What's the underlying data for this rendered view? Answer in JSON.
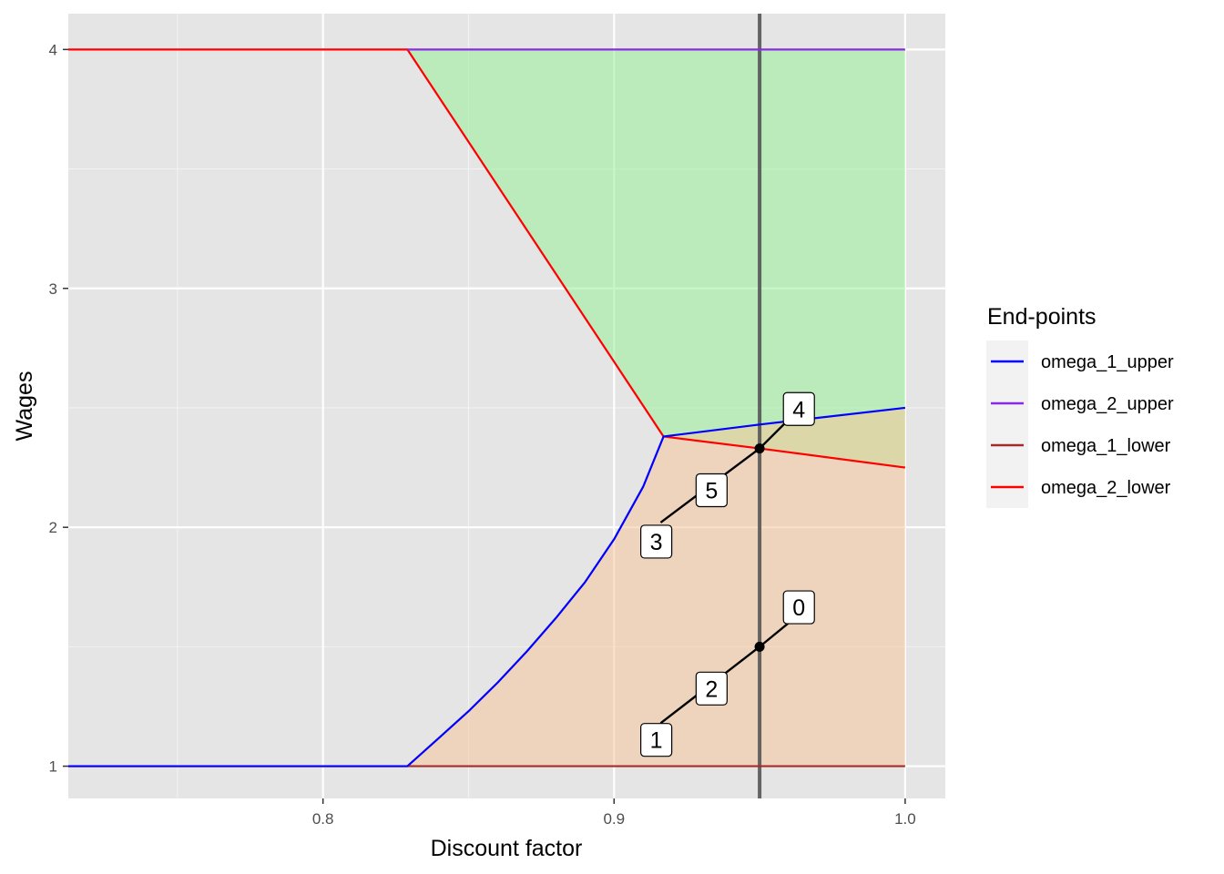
{
  "chart_data": {
    "type": "line",
    "title": "",
    "xlabel": "Discount factor",
    "ylabel": "Wages",
    "xlim": [
      0.7125,
      1.0138
    ],
    "ylim": [
      0.865,
      4.15
    ],
    "x_ticks": [
      0.8,
      0.9,
      1.0
    ],
    "x_tick_labels": [
      "0.8",
      "0.9",
      "1.0"
    ],
    "y_ticks": [
      1,
      2,
      3,
      4
    ],
    "y_tick_labels": [
      "1",
      "2",
      "3",
      "4"
    ],
    "grid": true,
    "legend": {
      "title": "End-points",
      "placement": "right",
      "entries": [
        {
          "name": "omega_1_upper",
          "color": "#0000ff"
        },
        {
          "name": "omega_2_upper",
          "color": "#8a2be2"
        },
        {
          "name": "omega_1_lower",
          "color": "#a52a2a"
        },
        {
          "name": "omega_2_lower",
          "color": "#ff0000"
        }
      ]
    },
    "series": [
      {
        "name": "omega_1_upper",
        "color": "#0000ff",
        "x": [
          0.7125,
          0.829,
          0.84,
          0.85,
          0.86,
          0.87,
          0.88,
          0.89,
          0.9,
          0.91,
          0.917,
          0.95,
          1.0
        ],
        "y": [
          1.0,
          1.0,
          1.12,
          1.23,
          1.35,
          1.48,
          1.62,
          1.77,
          1.95,
          2.17,
          2.38,
          2.43,
          2.5
        ]
      },
      {
        "name": "omega_2_upper",
        "color": "#8a2be2",
        "x": [
          0.829,
          1.0
        ],
        "y": [
          4.0,
          4.0
        ]
      },
      {
        "name": "omega_1_lower",
        "color": "#a52a2a",
        "x": [
          0.7125,
          1.0
        ],
        "y": [
          1.0,
          1.0
        ]
      },
      {
        "name": "omega_2_lower",
        "color": "#ff0000",
        "x": [
          0.7125,
          0.829,
          0.917,
          0.95,
          1.0
        ],
        "y": [
          4.0,
          4.0,
          2.38,
          2.33,
          2.25
        ]
      }
    ],
    "regions": [
      {
        "color": "#99ee99",
        "opacity": 0.55,
        "x": [
          0.829,
          1.0,
          1.0,
          0.95,
          0.917
        ],
        "y": [
          4.0,
          4.0,
          2.25,
          2.33,
          2.38
        ]
      },
      {
        "color": "#f5c69a",
        "opacity": 0.55,
        "x": [
          0.829,
          0.84,
          0.85,
          0.86,
          0.87,
          0.88,
          0.89,
          0.9,
          0.91,
          0.917,
          0.95,
          1.0,
          1.0
        ],
        "y": [
          1.0,
          1.12,
          1.23,
          1.35,
          1.48,
          1.62,
          1.77,
          1.95,
          2.17,
          2.38,
          2.43,
          2.5,
          1.0
        ]
      }
    ],
    "vline": {
      "x": 0.95,
      "color": "#555555"
    },
    "points": [
      {
        "x": 0.95,
        "y": 1.5
      },
      {
        "x": 0.95,
        "y": 2.33
      }
    ],
    "segments": [
      {
        "x": [
          0.916,
          0.95,
          0.964
        ],
        "y": [
          1.18,
          1.5,
          1.64
        ]
      },
      {
        "x": [
          0.916,
          0.95,
          0.964
        ],
        "y": [
          2.02,
          2.33,
          2.5
        ]
      }
    ],
    "labels": [
      {
        "text": "0",
        "x": 0.9635,
        "y": 1.665
      },
      {
        "text": "1",
        "x": 0.9145,
        "y": 1.11
      },
      {
        "text": "2",
        "x": 0.9335,
        "y": 1.325
      },
      {
        "text": "3",
        "x": 0.9145,
        "y": 1.94
      },
      {
        "text": "4",
        "x": 0.9635,
        "y": 2.495
      },
      {
        "text": "5",
        "x": 0.9335,
        "y": 2.155
      }
    ]
  }
}
